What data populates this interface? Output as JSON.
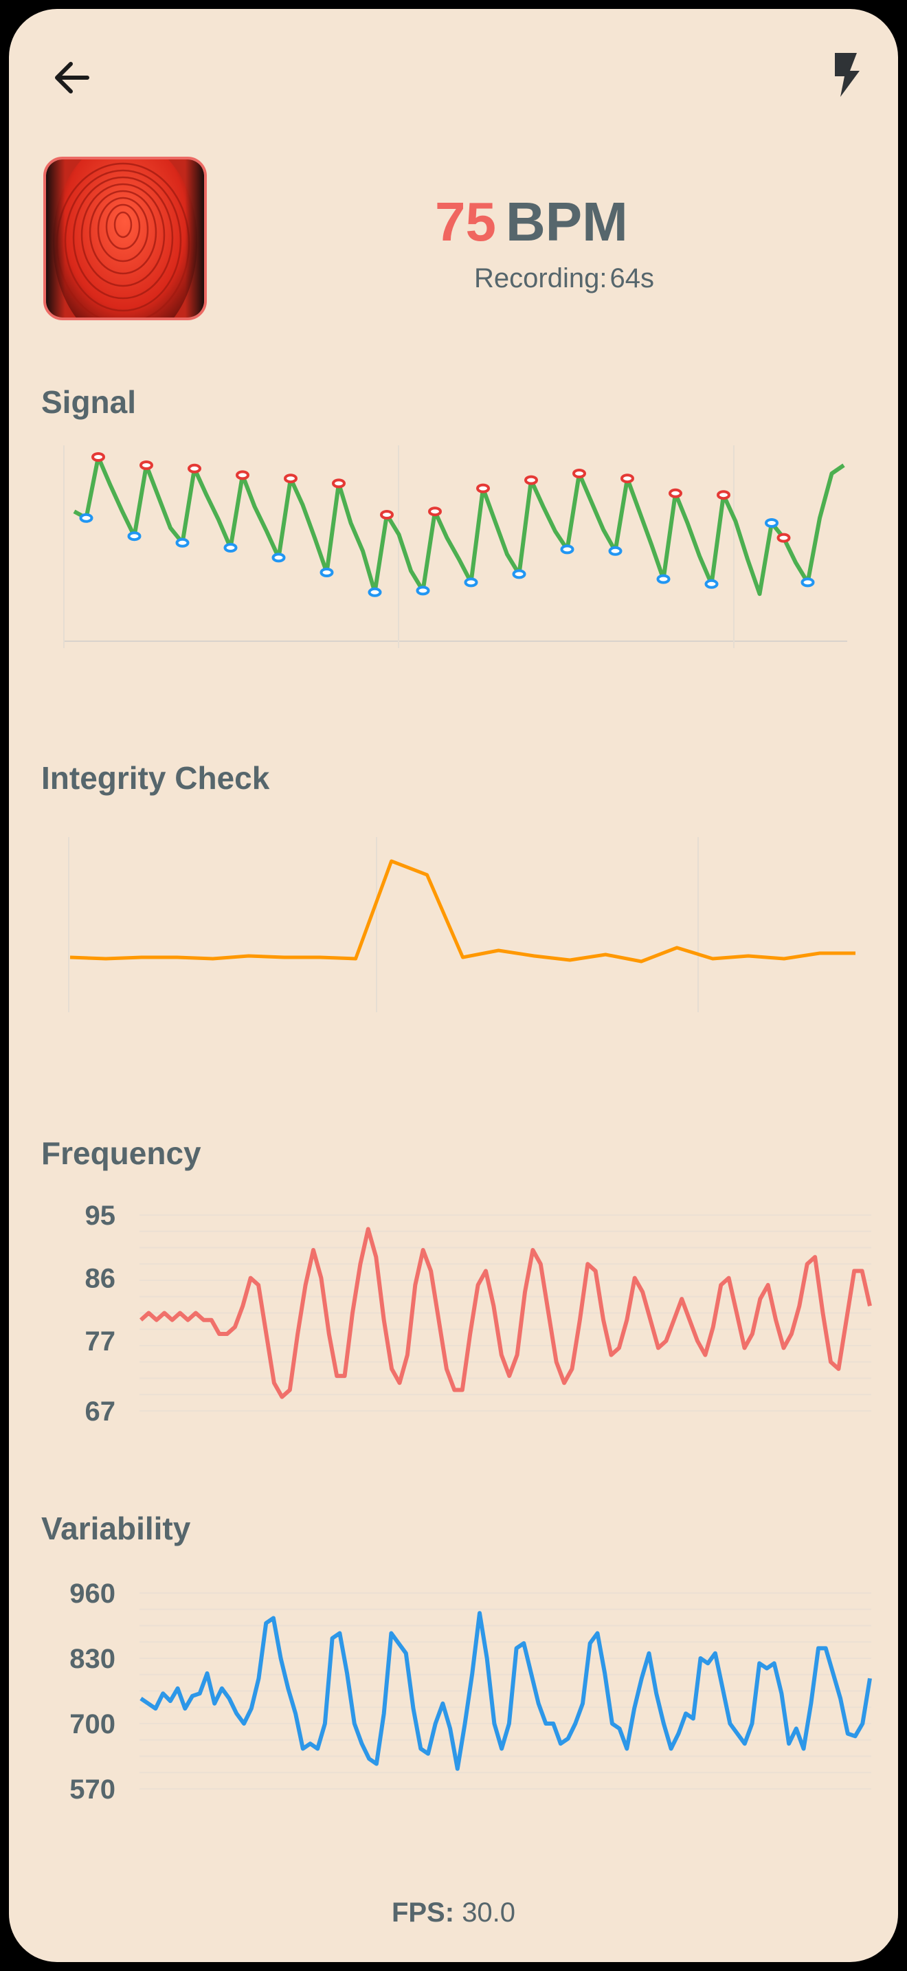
{
  "header": {
    "back_icon": "arrow-left-icon",
    "flash_icon": "flash-icon"
  },
  "finger_preview": {
    "icon": "fingerprint-camera-preview"
  },
  "heart_rate": {
    "value": "75",
    "unit": "BPM",
    "recording_label": "Recording:",
    "recording_value": "64s"
  },
  "signal": {
    "title": "Signal",
    "colors": {
      "line": "#4caf50",
      "peak": "#e53935",
      "trough": "#2196f3"
    },
    "chart_data": {
      "type": "line",
      "series": [
        {
          "values": [
            0.62,
            0.58,
            0.95,
            0.78,
            0.62,
            0.47,
            0.9,
            0.71,
            0.52,
            0.43,
            0.88,
            0.72,
            0.57,
            0.4,
            0.84,
            0.65,
            0.5,
            0.34,
            0.82,
            0.66,
            0.46,
            0.25,
            0.79,
            0.55,
            0.38,
            0.13,
            0.6,
            0.48,
            0.26,
            0.14,
            0.62,
            0.46,
            0.33,
            0.19,
            0.76,
            0.56,
            0.36,
            0.24,
            0.81,
            0.65,
            0.5,
            0.39,
            0.85,
            0.68,
            0.51,
            0.38,
            0.82,
            0.62,
            0.42,
            0.21,
            0.73,
            0.55,
            0.35,
            0.18,
            0.72,
            0.56,
            0.33,
            0.12,
            0.55,
            0.46,
            0.31,
            0.19,
            0.58,
            0.85,
            0.9
          ]
        }
      ],
      "peaks": [
        2,
        6,
        10,
        14,
        18,
        22,
        26,
        30,
        34,
        38,
        42,
        46,
        50,
        54,
        59
      ],
      "troughs": [
        1,
        5,
        9,
        13,
        17,
        21,
        25,
        29,
        33,
        37,
        41,
        45,
        49,
        53,
        58,
        61
      ],
      "ylim": [
        0,
        1
      ],
      "grid": true
    }
  },
  "integrity": {
    "title": "Integrity Check",
    "colors": {
      "line": "#ff9800"
    },
    "chart_data": {
      "type": "line",
      "series": [
        {
          "values": [
            0.3,
            0.29,
            0.3,
            0.3,
            0.29,
            0.31,
            0.3,
            0.3,
            0.29,
            1.0,
            0.9,
            0.3,
            0.35,
            0.31,
            0.28,
            0.32,
            0.27,
            0.37,
            0.29,
            0.31,
            0.29,
            0.33,
            0.33
          ]
        }
      ],
      "ylim": [
        0,
        1.2
      ],
      "grid": true
    }
  },
  "frequency": {
    "title": "Frequency",
    "colors": {
      "line": "#f0706a"
    },
    "chart_data": {
      "type": "line",
      "yticks": [
        "95",
        "86",
        "77",
        "67"
      ],
      "ylim": [
        67,
        95
      ],
      "series": [
        {
          "values": [
            80,
            81,
            80,
            81,
            80,
            81,
            80,
            81,
            80,
            80,
            78,
            78,
            79,
            82,
            86,
            85,
            78,
            71,
            69,
            70,
            78,
            85,
            90,
            86,
            78,
            72,
            72,
            81,
            88,
            93,
            89,
            80,
            73,
            71,
            75,
            85,
            90,
            87,
            80,
            73,
            70,
            70,
            78,
            85,
            87,
            82,
            75,
            72,
            75,
            84,
            90,
            88,
            81,
            74,
            71,
            73,
            80,
            88,
            87,
            80,
            75,
            76,
            80,
            86,
            84,
            80,
            76,
            77,
            80,
            83,
            80,
            77,
            75,
            79,
            85,
            86,
            81,
            76,
            78,
            83,
            85,
            80,
            76,
            78,
            82,
            88,
            89,
            81,
            74,
            73,
            80,
            87,
            87,
            82
          ]
        }
      ],
      "grid": true
    }
  },
  "variability": {
    "title": "Variability",
    "colors": {
      "line": "#2d97e8"
    },
    "chart_data": {
      "type": "line",
      "yticks": [
        "960",
        "830",
        "700",
        "570"
      ],
      "ylim": [
        570,
        960
      ],
      "series": [
        {
          "values": [
            750,
            740,
            730,
            760,
            745,
            770,
            730,
            755,
            760,
            800,
            740,
            770,
            750,
            720,
            700,
            730,
            790,
            900,
            910,
            830,
            770,
            720,
            650,
            660,
            650,
            700,
            870,
            880,
            800,
            700,
            660,
            630,
            620,
            720,
            880,
            860,
            840,
            730,
            650,
            640,
            700,
            740,
            690,
            610,
            700,
            800,
            920,
            830,
            700,
            650,
            700,
            850,
            860,
            800,
            740,
            700,
            700,
            660,
            670,
            700,
            740,
            860,
            880,
            800,
            700,
            690,
            650,
            730,
            790,
            840,
            760,
            700,
            650,
            680,
            720,
            710,
            830,
            820,
            840,
            770,
            700,
            680,
            660,
            700,
            820,
            810,
            820,
            760,
            660,
            690,
            650,
            740,
            850,
            850,
            800,
            750,
            680,
            675,
            700,
            790
          ]
        }
      ],
      "grid": true
    }
  },
  "footer": {
    "fps_label": "FPS:",
    "fps_value": "30.0"
  }
}
